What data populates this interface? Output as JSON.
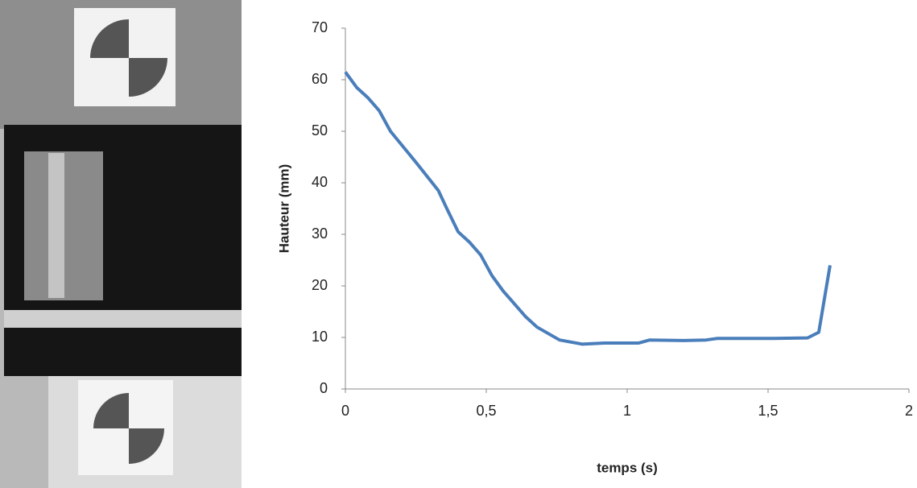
{
  "chart_data": {
    "type": "line",
    "x_label": "temps (s)",
    "y_label": "Hauteur (mm)",
    "xlim": [
      0,
      2
    ],
    "xticks": [
      0,
      {
        "value": 0.5,
        "label": "0,5"
      },
      1,
      {
        "value": 1.5,
        "label": "1,5"
      },
      2
    ],
    "ylim": [
      0,
      70
    ],
    "yticks": [
      0,
      10,
      20,
      30,
      40,
      50,
      60,
      70
    ],
    "grid": false,
    "series": [
      {
        "name": "Hauteur",
        "color": "#4a7ebb",
        "x": [
          0,
          0.04,
          0.08,
          0.12,
          0.16,
          0.25,
          0.33,
          0.36,
          0.4,
          0.44,
          0.48,
          0.52,
          0.56,
          0.6,
          0.64,
          0.68,
          0.76,
          0.84,
          0.92,
          1.04,
          1.08,
          1.2,
          1.28,
          1.32,
          1.52,
          1.64,
          1.68,
          1.72
        ],
        "values": [
          61.5,
          58.5,
          56.5,
          54,
          50,
          44,
          38.5,
          35,
          30.5,
          28.5,
          26,
          22,
          19,
          16.5,
          14,
          12,
          9.5,
          8.7,
          8.9,
          8.9,
          9.5,
          9.4,
          9.5,
          9.8,
          9.8,
          9.9,
          11,
          24
        ]
      }
    ]
  }
}
